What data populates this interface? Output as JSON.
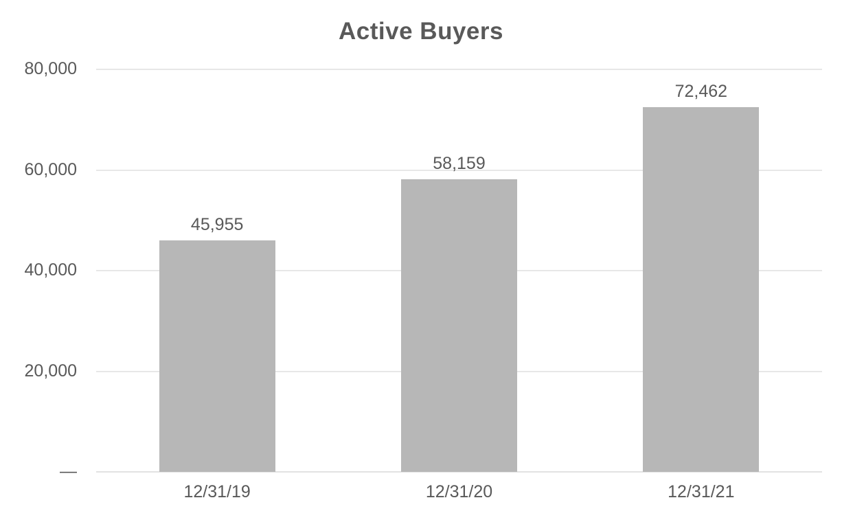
{
  "chart_data": {
    "type": "bar",
    "title": "Active Buyers",
    "categories": [
      "12/31/19",
      "12/31/20",
      "12/31/21"
    ],
    "values": [
      45955,
      58159,
      72462
    ],
    "value_labels": [
      "45,955",
      "58,159",
      "72,462"
    ],
    "yticks": [
      {
        "value": 80000,
        "label": "80,000"
      },
      {
        "value": 60000,
        "label": "60,000"
      },
      {
        "value": 40000,
        "label": "40,000"
      },
      {
        "value": 20000,
        "label": "20,000"
      },
      {
        "value": 0,
        "label": "—"
      }
    ],
    "ylim": [
      0,
      80000
    ],
    "xlabel": "",
    "ylabel": "",
    "grid": true,
    "legend": false,
    "colors": {
      "bar": "#b7b7b7",
      "text": "#595959",
      "gridline": "#e7e7e7",
      "axis_line": "#e2e2e2",
      "background": "#ffffff"
    }
  }
}
